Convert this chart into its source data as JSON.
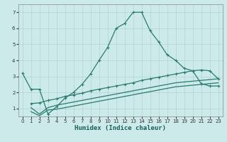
{
  "xlabel": "Humidex (Indice chaleur)",
  "bg_color": "#cdeaea",
  "grid_color": "#b0d4d4",
  "line_color": "#2a7a70",
  "xlim": [
    -0.5,
    23.5
  ],
  "ylim": [
    0.5,
    7.5
  ],
  "yticks": [
    1,
    2,
    3,
    4,
    5,
    6,
    7
  ],
  "xticks": [
    0,
    1,
    2,
    3,
    4,
    5,
    6,
    7,
    8,
    9,
    10,
    11,
    12,
    13,
    14,
    15,
    16,
    17,
    18,
    19,
    20,
    21,
    22,
    23
  ],
  "line1_x": [
    0,
    1,
    2,
    3,
    4,
    5,
    6,
    7,
    8,
    9,
    10,
    11,
    12,
    13,
    14,
    15,
    16,
    17,
    18,
    19,
    20,
    21,
    22,
    23
  ],
  "line1_y": [
    3.2,
    2.2,
    2.2,
    0.65,
    1.1,
    1.65,
    2.0,
    2.5,
    3.15,
    4.0,
    4.8,
    6.0,
    6.3,
    7.0,
    7.0,
    5.85,
    5.15,
    4.35,
    4.0,
    3.5,
    3.35,
    2.55,
    2.4,
    2.4
  ],
  "line2_x": [
    1,
    2,
    3,
    4,
    5,
    6,
    7,
    8,
    9,
    10,
    11,
    12,
    13,
    14,
    15,
    16,
    17,
    18,
    19,
    20,
    21,
    22,
    23
  ],
  "line2_y": [
    1.3,
    1.35,
    1.5,
    1.6,
    1.75,
    1.85,
    1.95,
    2.1,
    2.2,
    2.3,
    2.4,
    2.5,
    2.6,
    2.75,
    2.85,
    2.95,
    3.05,
    3.15,
    3.25,
    3.35,
    3.4,
    3.35,
    2.85
  ],
  "line3_x": [
    1,
    2,
    3,
    4,
    5,
    6,
    7,
    8,
    9,
    10,
    11,
    12,
    13,
    14,
    15,
    16,
    17,
    18,
    19,
    20,
    21,
    22,
    23
  ],
  "line3_y": [
    1.05,
    0.65,
    1.05,
    1.2,
    1.3,
    1.4,
    1.5,
    1.6,
    1.7,
    1.8,
    1.9,
    2.0,
    2.1,
    2.2,
    2.3,
    2.4,
    2.5,
    2.6,
    2.65,
    2.7,
    2.75,
    2.8,
    2.85
  ],
  "line4_x": [
    1,
    2,
    3,
    4,
    5,
    6,
    7,
    8,
    9,
    10,
    11,
    12,
    13,
    14,
    15,
    16,
    17,
    18,
    19,
    20,
    21,
    22,
    23
  ],
  "line4_y": [
    0.8,
    0.55,
    0.9,
    0.95,
    1.05,
    1.15,
    1.25,
    1.35,
    1.45,
    1.55,
    1.65,
    1.75,
    1.85,
    1.95,
    2.05,
    2.15,
    2.25,
    2.35,
    2.4,
    2.45,
    2.5,
    2.55,
    2.6
  ]
}
